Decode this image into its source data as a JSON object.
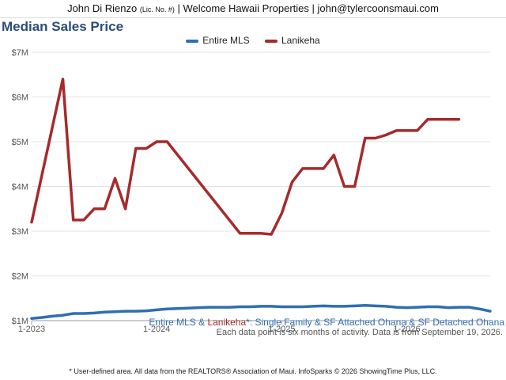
{
  "header": {
    "name": "John Di Rienzo",
    "license": "(Lic. No. #)",
    "company": "| Welcome Hawaii Properties |",
    "email": "john@tylercoonsmaui.com"
  },
  "title": "Median Sales Price",
  "description": {
    "series_a": "Entire MLS",
    "amp": " & ",
    "series_b": "Lanikeha",
    "rest": "*: Single Family & SF Attached Ohana & SF Detached Ohana"
  },
  "note": "Each data point is six months of activity. Data is from September 19, 2026.",
  "credit": "* User-defined area. All data from the REALTORS® Association of Maui. InfoSparks © 2026 ShowingTime Plus, LLC.",
  "chart_data": {
    "type": "line",
    "title": "Median Sales Price",
    "legend_position": "top-center",
    "grid": true,
    "x_ticks": [
      "1-2023",
      "1-2024",
      "1-2025",
      "1-2026"
    ],
    "y_ticks": [
      "$1M",
      "$2M",
      "$3M",
      "$4M",
      "$5M",
      "$6M",
      "$7M"
    ],
    "ylim": [
      1.0,
      7.0
    ],
    "y_unit": "millions USD",
    "x_start": "2023-01",
    "x_end": "2026-09",
    "series": [
      {
        "name": "Entire MLS",
        "color": "#2f6eb2",
        "x": [
          "2023-01",
          "2023-02",
          "2023-03",
          "2023-04",
          "2023-05",
          "2023-06",
          "2023-07",
          "2023-08",
          "2023-09",
          "2023-10",
          "2023-11",
          "2023-12",
          "2024-01",
          "2024-02",
          "2024-03",
          "2024-04",
          "2024-05",
          "2024-06",
          "2024-07",
          "2024-08",
          "2024-09",
          "2024-10",
          "2024-11",
          "2024-12",
          "2025-01",
          "2025-02",
          "2025-03",
          "2025-04",
          "2025-05",
          "2025-06",
          "2025-07",
          "2025-08",
          "2025-09",
          "2025-10",
          "2025-11",
          "2025-12",
          "2026-01",
          "2026-02",
          "2026-03",
          "2026-04",
          "2026-05",
          "2026-06",
          "2026-07",
          "2026-08",
          "2026-09"
        ],
        "values": [
          1.05,
          1.07,
          1.1,
          1.12,
          1.16,
          1.16,
          1.17,
          1.19,
          1.2,
          1.21,
          1.21,
          1.22,
          1.24,
          1.26,
          1.27,
          1.28,
          1.29,
          1.3,
          1.3,
          1.3,
          1.31,
          1.31,
          1.32,
          1.32,
          1.31,
          1.31,
          1.31,
          1.32,
          1.33,
          1.32,
          1.32,
          1.33,
          1.34,
          1.33,
          1.32,
          1.3,
          1.29,
          1.3,
          1.31,
          1.31,
          1.29,
          1.3,
          1.3,
          1.26,
          1.21
        ]
      },
      {
        "name": "Lanikeha",
        "color": "#a62a2c",
        "x": [
          "2023-01",
          "2023-04",
          "2023-05",
          "2023-06",
          "2023-07",
          "2023-08",
          "2023-09",
          "2023-10",
          "2023-11",
          "2023-12",
          "2024-01",
          "2024-02",
          "2024-09",
          "2024-10",
          "2024-11",
          "2024-12",
          "2025-01",
          "2025-02",
          "2025-03",
          "2025-04",
          "2025-05",
          "2025-06",
          "2025-07",
          "2025-08",
          "2025-09",
          "2025-10",
          "2025-11",
          "2025-12",
          "2026-01",
          "2026-02",
          "2026-03",
          "2026-04",
          "2026-05",
          "2026-06"
        ],
        "values": [
          3.2,
          6.4,
          3.25,
          3.25,
          3.5,
          3.5,
          4.18,
          3.5,
          4.85,
          4.85,
          5.0,
          5.0,
          2.95,
          2.95,
          2.95,
          2.93,
          3.4,
          4.1,
          4.4,
          4.4,
          4.4,
          4.7,
          4.0,
          4.0,
          5.08,
          5.08,
          5.15,
          5.25,
          5.25,
          5.25,
          5.5,
          5.5,
          5.5,
          5.5
        ]
      }
    ]
  }
}
